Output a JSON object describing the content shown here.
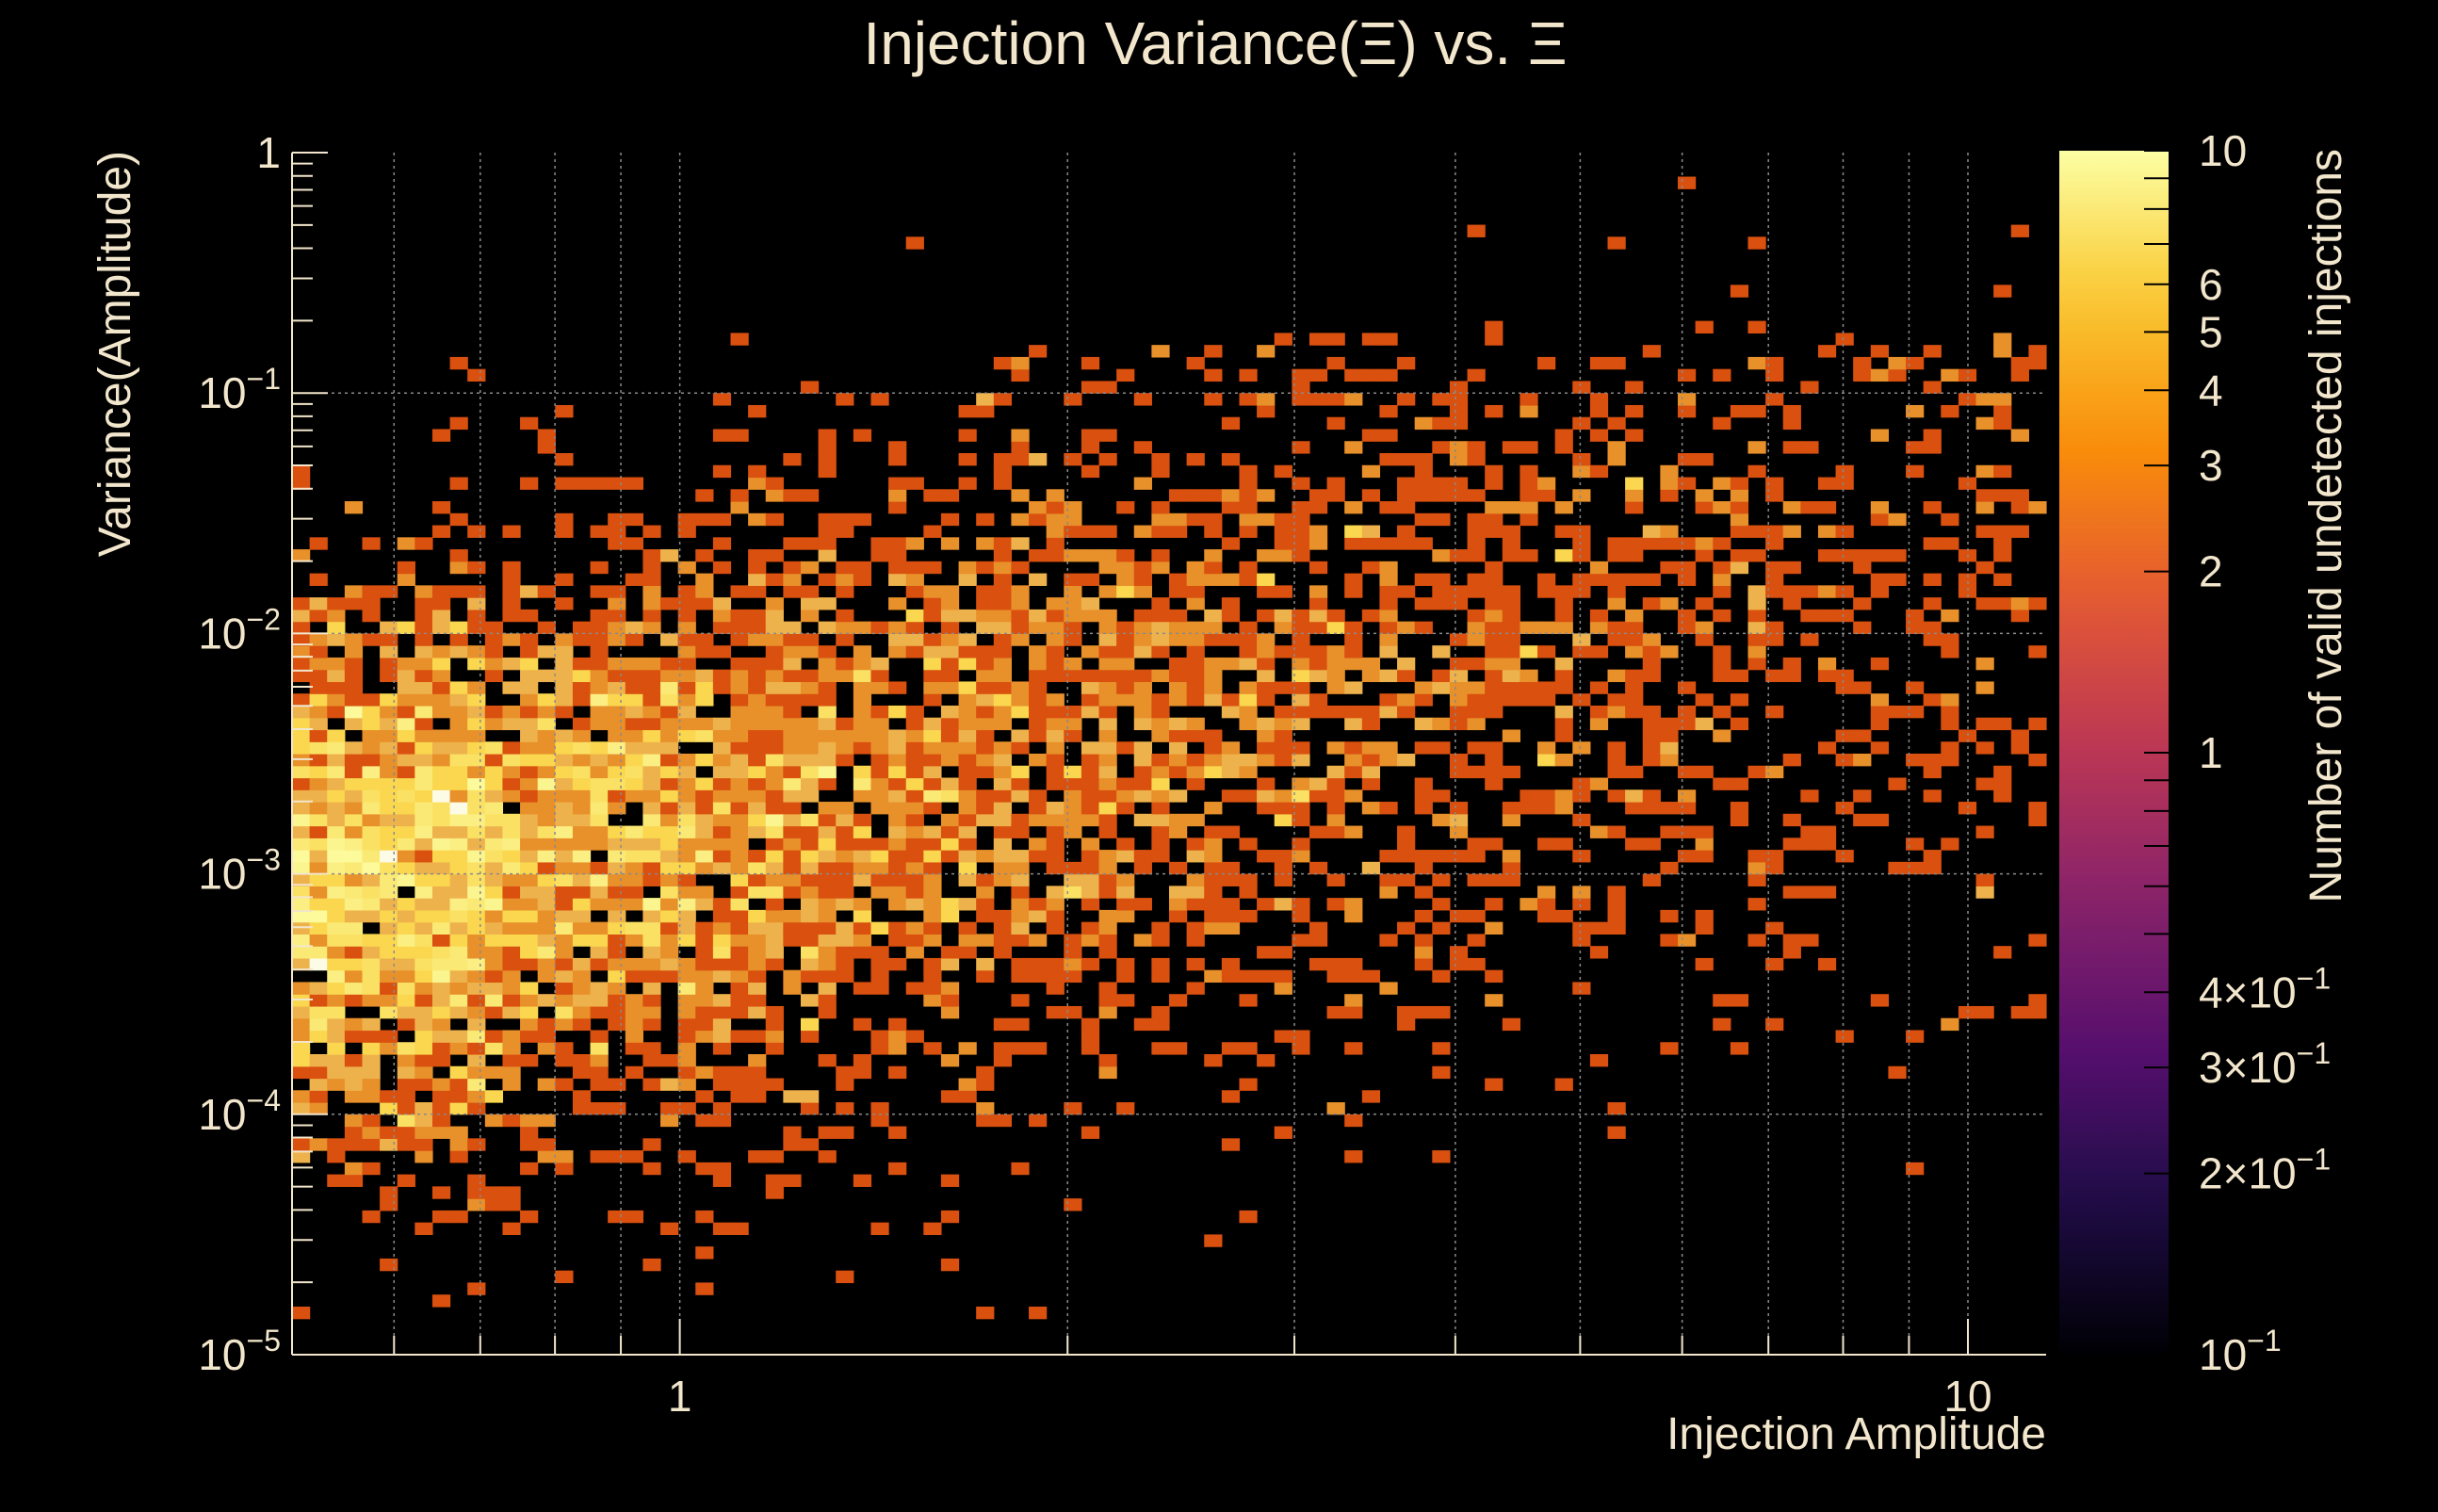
{
  "chart_data": {
    "type": "heatmap",
    "title": "Injection Variance(Ξ) vs. Ξ",
    "xlabel": "Injection Amplitude",
    "ylabel": "Variance(Amplitude)",
    "colorbar_label": "Number of valid undetected injections",
    "x_scale": "log",
    "y_scale": "log",
    "z_scale": "log",
    "xlim": [
      0.5,
      11.5
    ],
    "ylim": [
      1e-05,
      1
    ],
    "zlim": [
      0.1,
      10
    ],
    "x_ticks": [
      1,
      10
    ],
    "x_tick_labels": [
      "1",
      "10"
    ],
    "y_ticks": [
      1e-05,
      0.0001,
      0.001,
      0.01,
      0.1,
      1
    ],
    "y_tick_labels": [
      {
        "base": "10",
        "exp": "−5"
      },
      {
        "base": "10",
        "exp": "−4"
      },
      {
        "base": "10",
        "exp": "−3"
      },
      {
        "base": "10",
        "exp": "−2"
      },
      {
        "base": "10",
        "exp": "−1"
      },
      {
        "base": "1",
        "exp": ""
      }
    ],
    "z_ticks": [
      0.1,
      0.2,
      0.3,
      0.4,
      1,
      2,
      3,
      4,
      5,
      6,
      10
    ],
    "z_tick_labels": [
      {
        "base": "10",
        "exp": "−1"
      },
      {
        "base": "2×10",
        "exp": "−1"
      },
      {
        "base": "3×10",
        "exp": "−1"
      },
      {
        "base": "4×10",
        "exp": "−1"
      },
      {
        "base": "1",
        "exp": ""
      },
      {
        "base": "2",
        "exp": ""
      },
      {
        "base": "3",
        "exp": ""
      },
      {
        "base": "4",
        "exp": ""
      },
      {
        "base": "5",
        "exp": ""
      },
      {
        "base": "6",
        "exp": ""
      },
      {
        "base": "10",
        "exp": ""
      }
    ],
    "grid": true,
    "colormap": "inferno",
    "bins": {
      "nx": 100,
      "ny": 100
    },
    "density_model": {
      "description": "bin counts 1-10, densest near amplitude 0.55 and variance 1e-3",
      "seed": 12345,
      "peak_count": 10
    }
  },
  "colors": {
    "background": "#000000",
    "text": "#f2e6cc",
    "grid": "#8a8a8a",
    "count_1": "#d9500f",
    "count_2": "#e8902a",
    "count_3": "#eeb24c",
    "count_10": "#fcfbe6"
  }
}
